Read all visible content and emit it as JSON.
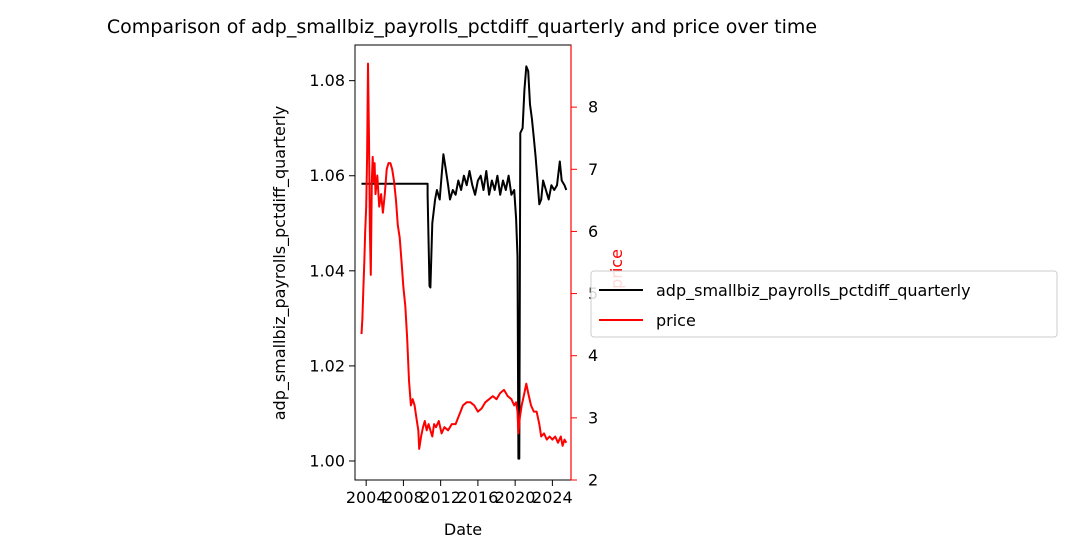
{
  "chart_data": {
    "type": "line",
    "title": "Comparison of adp_smallbiz_payrolls_pctdiff_quarterly and price over time",
    "xlabel": "Date",
    "ylabel_left": "adp_smallbiz_payrolls_pctdiff_quarterly",
    "ylabel_right": "price",
    "x_ticks": [
      "2004",
      "2008",
      "2012",
      "2016",
      "2020",
      "2024"
    ],
    "y_left_ticks": [
      "1.00",
      "1.02",
      "1.04",
      "1.06",
      "1.08"
    ],
    "y_right_ticks": [
      "2",
      "3",
      "4",
      "5",
      "6",
      "7",
      "8"
    ],
    "xlim": [
      2002.8,
      2026.0
    ],
    "ylim_left": [
      0.996,
      1.0875
    ],
    "ylim_right": [
      2.0,
      9.0
    ],
    "legend_position": "right",
    "colors": {
      "adp": "#000000",
      "price": "#ff0000",
      "right_axis": "#ff0000"
    },
    "series": [
      {
        "name": "adp_smallbiz_payrolls_pctdiff_quarterly",
        "axis": "left",
        "color": "#000000",
        "points": [
          [
            2003.5,
            1.0583
          ],
          [
            2010.6,
            1.0583
          ],
          [
            2010.6,
            1.056
          ],
          [
            2010.8,
            1.0368
          ],
          [
            2010.9,
            1.0365
          ],
          [
            2011.1,
            1.05
          ],
          [
            2011.4,
            1.055
          ],
          [
            2011.6,
            1.057
          ],
          [
            2011.9,
            1.055
          ],
          [
            2012.1,
            1.06
          ],
          [
            2012.3,
            1.0645
          ],
          [
            2012.5,
            1.062
          ],
          [
            2012.8,
            1.058
          ],
          [
            2013.0,
            1.055
          ],
          [
            2013.3,
            1.057
          ],
          [
            2013.6,
            1.056
          ],
          [
            2013.9,
            1.059
          ],
          [
            2014.2,
            1.057
          ],
          [
            2014.5,
            1.06
          ],
          [
            2014.8,
            1.058
          ],
          [
            2015.1,
            1.061
          ],
          [
            2015.4,
            1.058
          ],
          [
            2015.7,
            1.056
          ],
          [
            2016.0,
            1.059
          ],
          [
            2016.3,
            1.06
          ],
          [
            2016.6,
            1.057
          ],
          [
            2016.9,
            1.061
          ],
          [
            2017.2,
            1.056
          ],
          [
            2017.5,
            1.059
          ],
          [
            2017.8,
            1.057
          ],
          [
            2018.1,
            1.06
          ],
          [
            2018.4,
            1.056
          ],
          [
            2018.7,
            1.059
          ],
          [
            2019.0,
            1.057
          ],
          [
            2019.3,
            1.06
          ],
          [
            2019.6,
            1.056
          ],
          [
            2019.9,
            1.057
          ],
          [
            2020.1,
            1.051
          ],
          [
            2020.25,
            1.043
          ],
          [
            2020.35,
            1.0005
          ],
          [
            2020.45,
            1.0005
          ],
          [
            2020.55,
            1.069
          ],
          [
            2020.8,
            1.07
          ],
          [
            2021.0,
            1.078
          ],
          [
            2021.2,
            1.083
          ],
          [
            2021.4,
            1.082
          ],
          [
            2021.6,
            1.075
          ],
          [
            2021.8,
            1.072
          ],
          [
            2022.0,
            1.068
          ],
          [
            2022.2,
            1.064
          ],
          [
            2022.4,
            1.059
          ],
          [
            2022.6,
            1.054
          ],
          [
            2022.8,
            1.055
          ],
          [
            2023.0,
            1.059
          ],
          [
            2023.3,
            1.057
          ],
          [
            2023.6,
            1.055
          ],
          [
            2023.9,
            1.058
          ],
          [
            2024.2,
            1.057
          ],
          [
            2024.5,
            1.058
          ],
          [
            2024.8,
            1.063
          ],
          [
            2025.0,
            1.059
          ],
          [
            2025.3,
            1.058
          ],
          [
            2025.5,
            1.057
          ]
        ]
      },
      {
        "name": "price",
        "axis": "right",
        "color": "#ff0000",
        "points": [
          [
            2003.5,
            4.35
          ],
          [
            2003.6,
            4.6
          ],
          [
            2003.7,
            5.1
          ],
          [
            2003.8,
            5.5
          ],
          [
            2003.9,
            6.0
          ],
          [
            2004.0,
            6.4
          ],
          [
            2004.1,
            7.2
          ],
          [
            2004.2,
            8.7
          ],
          [
            2004.3,
            7.5
          ],
          [
            2004.4,
            6.0
          ],
          [
            2004.5,
            5.3
          ],
          [
            2004.6,
            6.8
          ],
          [
            2004.7,
            7.2
          ],
          [
            2004.8,
            6.8
          ],
          [
            2004.9,
            7.1
          ],
          [
            2005.0,
            6.6
          ],
          [
            2005.2,
            6.9
          ],
          [
            2005.4,
            6.4
          ],
          [
            2005.6,
            6.6
          ],
          [
            2005.8,
            6.3
          ],
          [
            2006.0,
            6.6
          ],
          [
            2006.2,
            7.0
          ],
          [
            2006.4,
            7.1
          ],
          [
            2006.6,
            7.1
          ],
          [
            2006.8,
            7.0
          ],
          [
            2007.0,
            6.8
          ],
          [
            2007.2,
            6.5
          ],
          [
            2007.4,
            6.1
          ],
          [
            2007.6,
            5.9
          ],
          [
            2007.8,
            5.5
          ],
          [
            2008.0,
            5.1
          ],
          [
            2008.2,
            4.8
          ],
          [
            2008.4,
            4.3
          ],
          [
            2008.6,
            3.6
          ],
          [
            2008.8,
            3.2
          ],
          [
            2009.0,
            3.3
          ],
          [
            2009.2,
            3.2
          ],
          [
            2009.4,
            3.0
          ],
          [
            2009.6,
            2.8
          ],
          [
            2009.7,
            2.5
          ],
          [
            2009.9,
            2.7
          ],
          [
            2010.1,
            2.85
          ],
          [
            2010.3,
            2.95
          ],
          [
            2010.5,
            2.8
          ],
          [
            2010.7,
            2.9
          ],
          [
            2010.9,
            2.8
          ],
          [
            2011.1,
            2.7
          ],
          [
            2011.3,
            2.9
          ],
          [
            2011.5,
            2.85
          ],
          [
            2011.8,
            2.95
          ],
          [
            2012.1,
            2.75
          ],
          [
            2012.4,
            2.85
          ],
          [
            2012.8,
            2.8
          ],
          [
            2013.2,
            2.9
          ],
          [
            2013.6,
            2.9
          ],
          [
            2014.0,
            3.05
          ],
          [
            2014.4,
            3.2
          ],
          [
            2014.8,
            3.25
          ],
          [
            2015.2,
            3.25
          ],
          [
            2015.6,
            3.2
          ],
          [
            2016.0,
            3.1
          ],
          [
            2016.4,
            3.15
          ],
          [
            2016.8,
            3.25
          ],
          [
            2017.2,
            3.3
          ],
          [
            2017.6,
            3.35
          ],
          [
            2018.0,
            3.3
          ],
          [
            2018.4,
            3.4
          ],
          [
            2018.8,
            3.45
          ],
          [
            2019.2,
            3.35
          ],
          [
            2019.6,
            3.3
          ],
          [
            2019.9,
            3.2
          ],
          [
            2020.1,
            3.25
          ],
          [
            2020.25,
            3.1
          ],
          [
            2020.35,
            2.75
          ],
          [
            2020.5,
            3.0
          ],
          [
            2020.7,
            3.2
          ],
          [
            2021.0,
            3.4
          ],
          [
            2021.2,
            3.55
          ],
          [
            2021.4,
            3.4
          ],
          [
            2021.7,
            3.2
          ],
          [
            2022.0,
            3.1
          ],
          [
            2022.3,
            3.1
          ],
          [
            2022.6,
            2.9
          ],
          [
            2022.8,
            2.7
          ],
          [
            2023.1,
            2.75
          ],
          [
            2023.4,
            2.65
          ],
          [
            2023.7,
            2.7
          ],
          [
            2024.0,
            2.65
          ],
          [
            2024.3,
            2.7
          ],
          [
            2024.6,
            2.6
          ],
          [
            2024.9,
            2.7
          ],
          [
            2025.1,
            2.55
          ],
          [
            2025.3,
            2.65
          ],
          [
            2025.5,
            2.6
          ]
        ]
      }
    ]
  }
}
